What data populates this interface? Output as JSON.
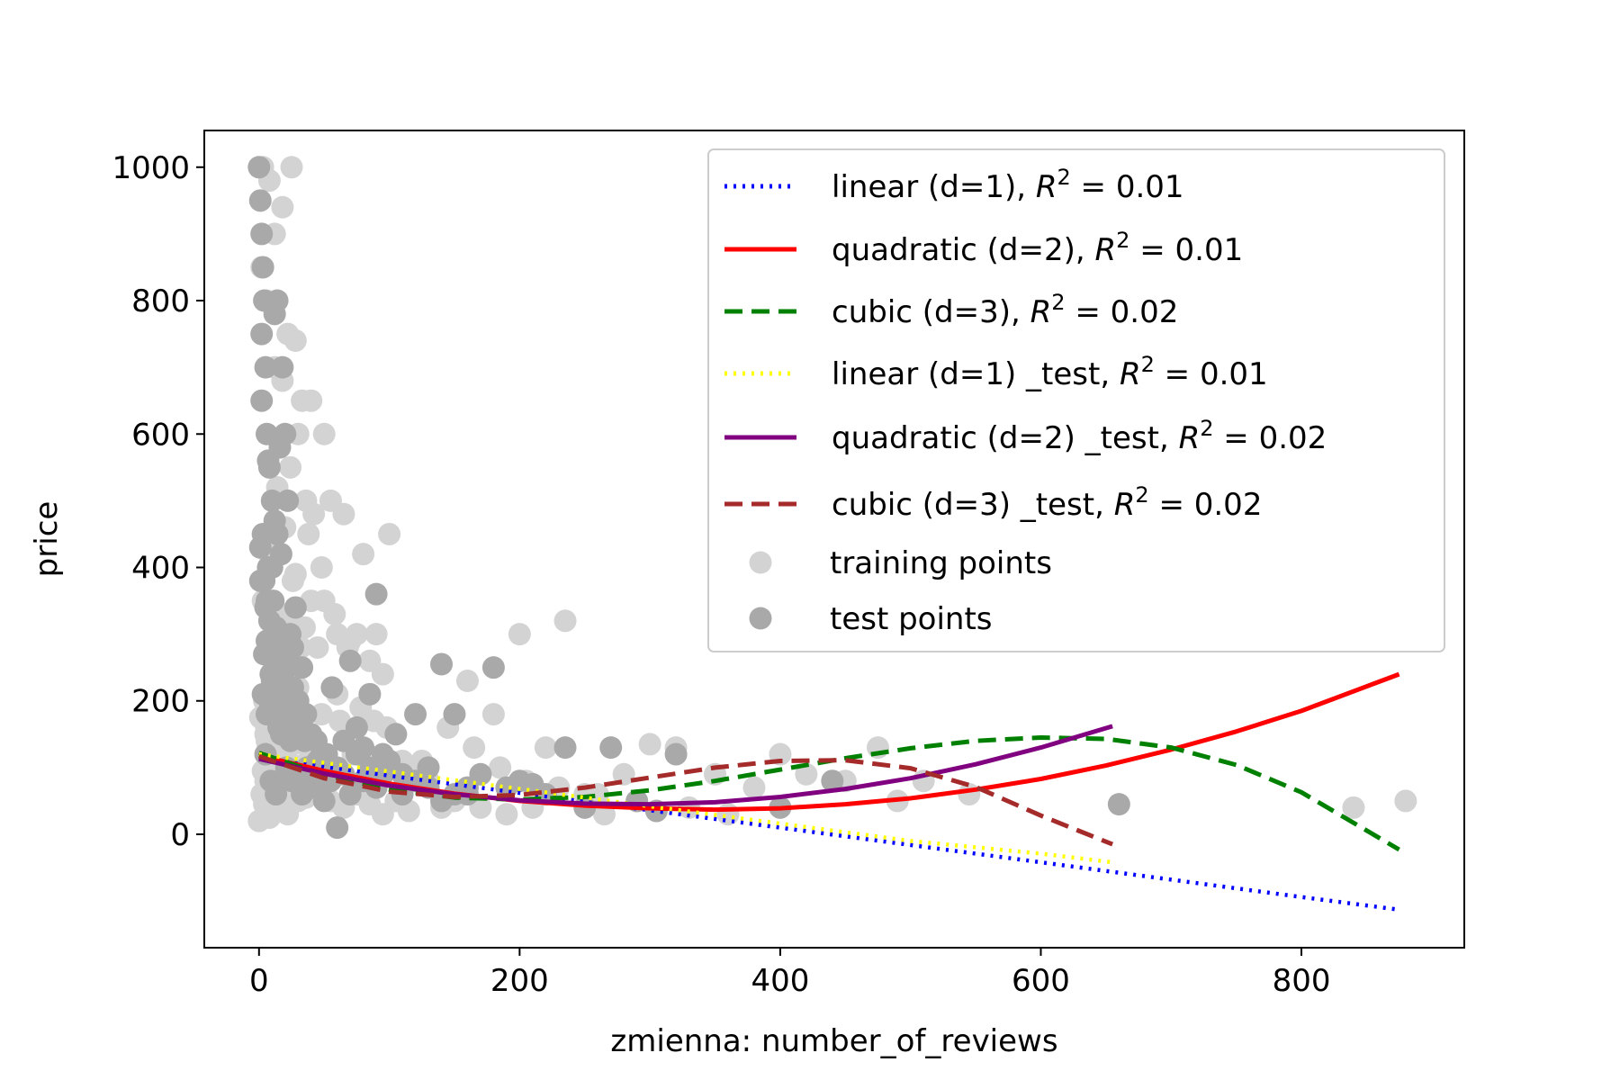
{
  "chart_data": {
    "type": "scatter",
    "xlabel": "zmienna: number_of_reviews",
    "ylabel": "price",
    "xlim": [
      -42,
      925
    ],
    "ylim": [
      -170,
      1055
    ],
    "x_ticks": [
      0,
      200,
      400,
      600,
      800
    ],
    "y_ticks": [
      0,
      200,
      400,
      600,
      800,
      1000
    ],
    "grid": false,
    "legend_placement": "top-right",
    "series": [
      {
        "name": "linear (d=1)",
        "r2": "0.01",
        "kind": "line",
        "color": "#0000ff",
        "dash": "dotted",
        "x": [
          0,
          100,
          200,
          300,
          400,
          500,
          600,
          700,
          800,
          875
        ],
        "y": [
          115,
          88,
          62,
          36,
          10,
          -16,
          -42,
          -68,
          -94,
          -113
        ]
      },
      {
        "name": "quadratic (d=2)",
        "r2": "0.01",
        "kind": "line",
        "color": "#ff0000",
        "dash": "solid",
        "x": [
          0,
          50,
          100,
          150,
          200,
          250,
          300,
          350,
          400,
          450,
          500,
          550,
          600,
          650,
          700,
          750,
          800,
          875
        ],
        "y": [
          118,
          95,
          76,
          61,
          50,
          43,
          39,
          37,
          39,
          45,
          54,
          67,
          83,
          103,
          127,
          154,
          185,
          240
        ]
      },
      {
        "name": "cubic (d=3)",
        "r2": "0.02",
        "kind": "line",
        "color": "#008000",
        "dash": "dashed",
        "x": [
          0,
          50,
          100,
          150,
          200,
          250,
          300,
          350,
          400,
          450,
          500,
          550,
          600,
          650,
          700,
          750,
          800,
          875
        ],
        "y": [
          122,
          89,
          67,
          55,
          52,
          56,
          66,
          80,
          97,
          114,
          129,
          140,
          145,
          143,
          130,
          104,
          63,
          -23
        ]
      },
      {
        "name": "linear (d=1) _test",
        "r2": "0.01",
        "kind": "line",
        "color": "#ffff00",
        "dash": "dotted",
        "x": [
          0,
          100,
          200,
          300,
          400,
          500,
          600,
          655
        ],
        "y": [
          120,
          94,
          68,
          42,
          16,
          -10,
          -29,
          -42
        ]
      },
      {
        "name": "quadratic (d=2) _test",
        "r2": "0.02",
        "kind": "line",
        "color": "#800080",
        "dash": "solid",
        "x": [
          0,
          50,
          100,
          150,
          200,
          250,
          300,
          350,
          400,
          450,
          500,
          550,
          600,
          655
        ],
        "y": [
          113,
          91,
          73,
          60,
          51,
          46,
          45,
          48,
          56,
          68,
          84,
          105,
          130,
          162
        ]
      },
      {
        "name": "cubic (d=3) _test",
        "r2": "0.02",
        "kind": "line",
        "color": "#a52a2a",
        "dash": "dashed",
        "x": [
          0,
          50,
          100,
          150,
          200,
          250,
          300,
          350,
          400,
          450,
          500,
          550,
          600,
          655
        ],
        "y": [
          117,
          84,
          64,
          56,
          59,
          70,
          85,
          100,
          110,
          111,
          99,
          71,
          28,
          -15
        ]
      },
      {
        "name": "training points",
        "kind": "scatter",
        "color": "#d3d3d3",
        "x": [
          0,
          2,
          3,
          5,
          8,
          10,
          12,
          15,
          18,
          20,
          22,
          25,
          28,
          30,
          33,
          36,
          40,
          45,
          50,
          55,
          60,
          65,
          70,
          75,
          80,
          85,
          90,
          95,
          100,
          105,
          110,
          115,
          120,
          130,
          140,
          150,
          160,
          170,
          180,
          190,
          200,
          210,
          220,
          235,
          250,
          265,
          280,
          300,
          320,
          350,
          380,
          400,
          420,
          450,
          475,
          490,
          510,
          545,
          840,
          880,
          5,
          10,
          15,
          25,
          32,
          40,
          48,
          55,
          65,
          75,
          85,
          95,
          105,
          125,
          145,
          165,
          185,
          205,
          230,
          260,
          290,
          330,
          360,
          2,
          6,
          12,
          18,
          24,
          30,
          36,
          42,
          50,
          58,
          68,
          78,
          88,
          98,
          3,
          8,
          14,
          20,
          26,
          35,
          45,
          60,
          72,
          4,
          9,
          16,
          22,
          28,
          38,
          48,
          62,
          6,
          13,
          21,
          30,
          44,
          52,
          7,
          17,
          27,
          39,
          1,
          11,
          23,
          35,
          9,
          19,
          29,
          3,
          14,
          26,
          8,
          21,
          5,
          18,
          10,
          25,
          12,
          30,
          15,
          22,
          8,
          18,
          4,
          35
        ],
        "y": [
          20,
          60,
          1000,
          80,
          980,
          100,
          900,
          40,
          940,
          70,
          750,
          1000,
          740,
          50,
          650,
          55,
          650,
          70,
          600,
          50,
          300,
          40,
          290,
          60,
          420,
          45,
          300,
          30,
          450,
          50,
          110,
          35,
          90,
          80,
          40,
          50,
          230,
          40,
          180,
          30,
          300,
          40,
          130,
          320,
          60,
          30,
          90,
          135,
          130,
          90,
          70,
          120,
          90,
          80,
          130,
          50,
          80,
          60,
          40,
          50,
          150,
          200,
          250,
          300,
          280,
          350,
          400,
          500,
          480,
          300,
          260,
          240,
          150,
          110,
          160,
          130,
          100,
          80,
          70,
          60,
          50,
          40,
          30,
          850,
          800,
          700,
          680,
          550,
          600,
          500,
          480,
          350,
          330,
          280,
          190,
          170,
          160,
          350,
          420,
          520,
          460,
          380,
          310,
          280,
          210,
          120,
          200,
          240,
          270,
          330,
          390,
          450,
          180,
          170,
          140,
          160,
          190,
          220,
          100,
          110,
          130,
          240,
          150,
          125,
          175,
          210,
          90,
          105,
          115,
          230,
          255,
          95,
          145,
          135,
          85,
          120,
          165,
          75,
          110,
          65,
          115,
          55,
          45,
          30,
          25,
          35,
          45,
          55
        ]
      },
      {
        "name": "test points",
        "kind": "scatter",
        "color": "#a9a9a9",
        "x": [
          0,
          1,
          2,
          3,
          4,
          5,
          6,
          8,
          10,
          12,
          14,
          16,
          18,
          20,
          22,
          24,
          26,
          28,
          30,
          33,
          36,
          40,
          44,
          48,
          52,
          56,
          60,
          65,
          70,
          75,
          80,
          85,
          90,
          95,
          100,
          105,
          110,
          120,
          130,
          140,
          150,
          160,
          170,
          180,
          190,
          200,
          210,
          220,
          235,
          250,
          270,
          290,
          305,
          320,
          400,
          440,
          660,
          5,
          9,
          13,
          17,
          21,
          25,
          29,
          33,
          37,
          41,
          45,
          50,
          55,
          60,
          65,
          70,
          75,
          80,
          85,
          90,
          95,
          100,
          110,
          120,
          130,
          140,
          150,
          160,
          3,
          7,
          11,
          15,
          19,
          23,
          27,
          31,
          35,
          39,
          43,
          47,
          2,
          6,
          10,
          14,
          18,
          22,
          26,
          30,
          1,
          4,
          8,
          12,
          16,
          20,
          24,
          2,
          7,
          12,
          17,
          22,
          1,
          6,
          11,
          16,
          3,
          9,
          15,
          5,
          13,
          4,
          10,
          8,
          6
        ],
        "y": [
          1000,
          950,
          900,
          850,
          800,
          700,
          600,
          550,
          500,
          780,
          800,
          580,
          700,
          600,
          500,
          300,
          280,
          340,
          200,
          250,
          180,
          150,
          140,
          120,
          120,
          220,
          10,
          140,
          260,
          160,
          130,
          210,
          360,
          120,
          110,
          150,
          90,
          180,
          70,
          255,
          180,
          60,
          90,
          250,
          70,
          80,
          75,
          60,
          130,
          40,
          130,
          50,
          35,
          120,
          40,
          80,
          45,
          120,
          80,
          60,
          150,
          100,
          80,
          90,
          60,
          100,
          70,
          110,
          50,
          80,
          100,
          90,
          60,
          120,
          80,
          100,
          70,
          90,
          110,
          60,
          80,
          100,
          50,
          60,
          70,
          450,
          400,
          350,
          300,
          250,
          200,
          170,
          160,
          140,
          100,
          90,
          70,
          650,
          350,
          400,
          450,
          300,
          250,
          220,
          150,
          430,
          380,
          320,
          270,
          230,
          210,
          140,
          750,
          560,
          470,
          420,
          170,
          380,
          290,
          260,
          190,
          210,
          240,
          160,
          340,
          310,
          270,
          230,
          200,
          180
        ]
      }
    ]
  }
}
